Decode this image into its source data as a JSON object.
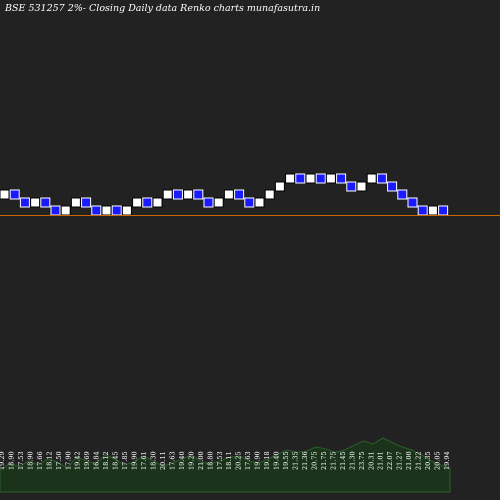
{
  "chart_data": {
    "type": "renko",
    "title": "BSE 531257 2%-  Closing Daily data  Renko  charts munafasutra.in",
    "brick_size_percent": 2,
    "last_close": 19.94,
    "bricks": [
      {
        "dir": "up"
      },
      {
        "dir": "down"
      },
      {
        "dir": "down"
      },
      {
        "dir": "up"
      },
      {
        "dir": "down"
      },
      {
        "dir": "down"
      },
      {
        "dir": "up"
      },
      {
        "dir": "up"
      },
      {
        "dir": "down"
      },
      {
        "dir": "down"
      },
      {
        "dir": "up"
      },
      {
        "dir": "down"
      },
      {
        "dir": "up"
      },
      {
        "dir": "up"
      },
      {
        "dir": "down"
      },
      {
        "dir": "up"
      },
      {
        "dir": "up"
      },
      {
        "dir": "down"
      },
      {
        "dir": "up"
      },
      {
        "dir": "down"
      },
      {
        "dir": "down"
      },
      {
        "dir": "up"
      },
      {
        "dir": "up"
      },
      {
        "dir": "down"
      },
      {
        "dir": "down"
      },
      {
        "dir": "up"
      },
      {
        "dir": "up"
      },
      {
        "dir": "up"
      },
      {
        "dir": "up"
      },
      {
        "dir": "down"
      },
      {
        "dir": "up"
      },
      {
        "dir": "down"
      },
      {
        "dir": "up"
      },
      {
        "dir": "down"
      },
      {
        "dir": "down"
      },
      {
        "dir": "up"
      },
      {
        "dir": "up"
      },
      {
        "dir": "down"
      },
      {
        "dir": "down"
      },
      {
        "dir": "down"
      },
      {
        "dir": "down"
      },
      {
        "dir": "down"
      },
      {
        "dir": "up"
      },
      {
        "dir": "down"
      }
    ],
    "labels": [
      "19.29",
      "18.90",
      "17.53",
      "18.90",
      "17.66",
      "18.12",
      "17.50",
      "17.90",
      "19.42",
      "19.69",
      "16.84",
      "18.12",
      "18.45",
      "17.85",
      "19.90",
      "17.61",
      "18.30",
      "20.11",
      "17.63",
      "19.40",
      "19.20",
      "21.00",
      "18.80",
      "17.53",
      "18.11",
      "20.25",
      "17.63",
      "19.90",
      "19.18",
      "19.40",
      "19.55",
      "21.35",
      "21.36",
      "20.75",
      "21.75",
      "21.75",
      "21.45",
      "21.30",
      "23.75",
      "20.31",
      "21.01",
      "22.07",
      "21.27",
      "21.00",
      "21.22",
      "20.35",
      "20.05",
      "19.94"
    ],
    "volume": [
      0.35,
      0.48,
      0.42,
      0.52,
      0.45,
      0.55,
      0.5,
      0.4,
      0.58,
      0.52,
      0.47,
      0.62,
      0.55,
      0.45,
      0.5,
      0.6,
      0.52,
      0.43,
      0.48,
      0.55,
      0.62,
      0.5,
      0.47,
      0.52,
      0.58,
      0.6,
      0.52,
      0.48,
      0.55,
      0.63,
      0.7,
      0.66,
      0.68,
      0.75,
      0.72,
      0.66,
      0.7,
      0.78,
      0.85,
      0.8,
      0.9,
      0.82,
      0.75,
      0.7,
      0.62,
      0.52,
      0.45,
      0.4
    ]
  }
}
